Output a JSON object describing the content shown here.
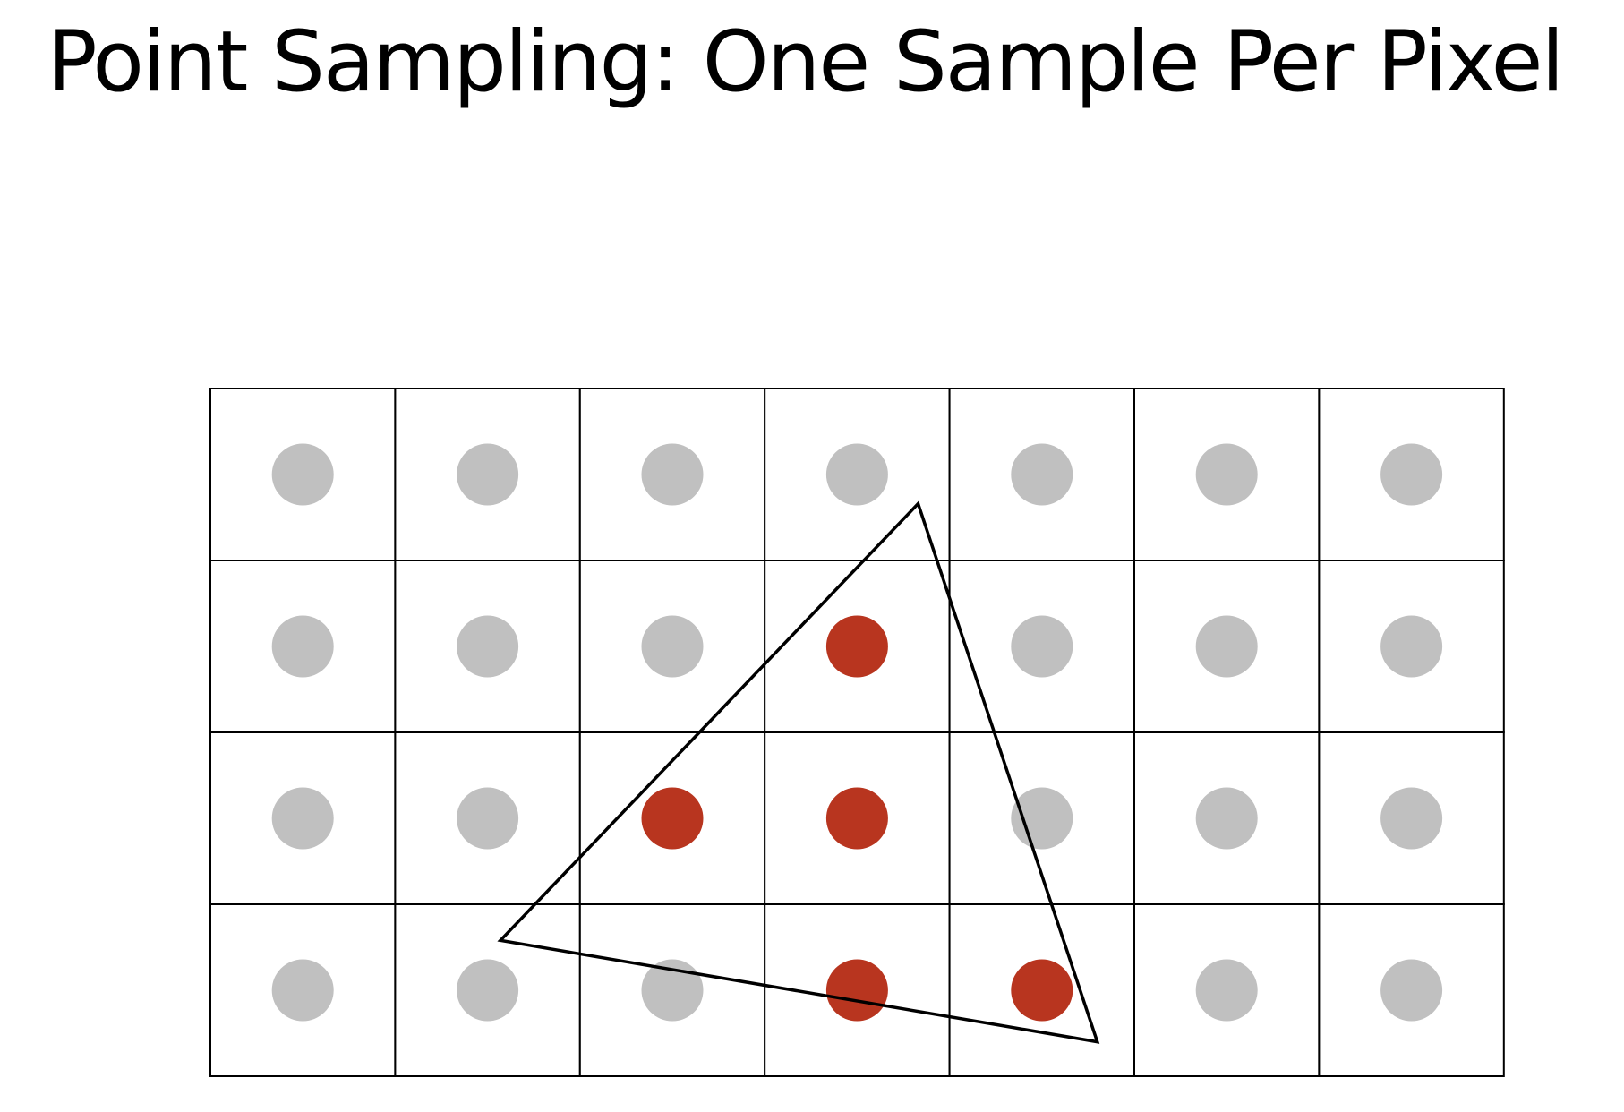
{
  "slide": {
    "title": "Point Sampling: One Sample Per Pixel"
  },
  "diagram": {
    "grid": {
      "columns": 7,
      "rows": 4
    },
    "samples": {
      "covered": [
        [
          1,
          3
        ],
        [
          2,
          2
        ],
        [
          2,
          3
        ],
        [
          3,
          3
        ],
        [
          3,
          4
        ]
      ]
    },
    "triangle": {
      "vertices_in_cell_units": [
        [
          3.83,
          0.67
        ],
        [
          1.57,
          3.21
        ],
        [
          4.8,
          3.8
        ]
      ]
    },
    "colors": {
      "covered_sample": "#b8351f",
      "uncovered_sample": "#c0c0c0",
      "grid_line": "#000000",
      "triangle_edge": "#000000",
      "background": "#ffffff"
    }
  }
}
